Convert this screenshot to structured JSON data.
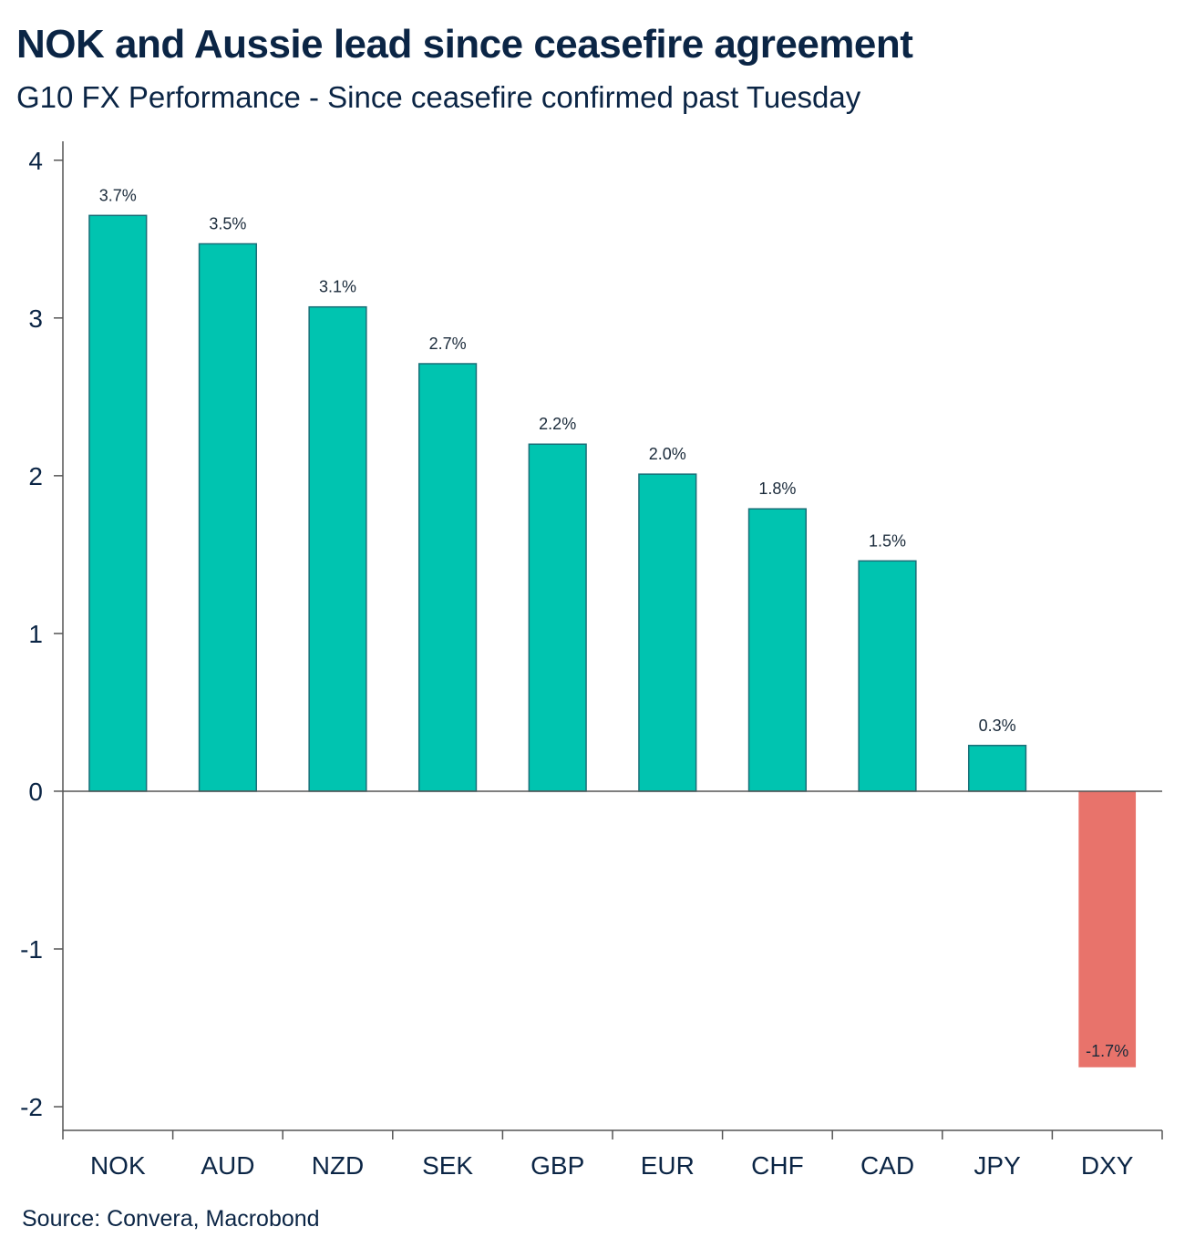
{
  "header": {
    "title": "NOK and Aussie lead since ceasefire agreement",
    "subtitle": "G10 FX Performance - Since ceasefire confirmed past Tuesday"
  },
  "footer": {
    "source": "Source: Convera, Macrobond"
  },
  "colors": {
    "positive": "#00c4b0",
    "positive_stroke": "#1a6f78",
    "negative": "#e8736b",
    "axis": "#555555",
    "text": "#0b2545"
  },
  "chart_data": {
    "type": "bar",
    "title": "NOK and Aussie lead since ceasefire agreement",
    "subtitle": "G10 FX Performance - Since ceasefire confirmed past Tuesday",
    "xlabel": "",
    "ylabel": "",
    "categories": [
      "NOK",
      "AUD",
      "NZD",
      "SEK",
      "GBP",
      "EUR",
      "CHF",
      "CAD",
      "JPY",
      "DXY"
    ],
    "values": [
      3.65,
      3.47,
      3.07,
      2.71,
      2.2,
      2.01,
      1.79,
      1.46,
      0.29,
      -1.75
    ],
    "data_labels": [
      "3.7%",
      "3.5%",
      "3.1%",
      "2.7%",
      "2.2%",
      "2.0%",
      "1.8%",
      "1.5%",
      "0.3%",
      "-1.7%"
    ],
    "ylim": [
      -2.15,
      4.12
    ],
    "yticks": [
      4,
      3,
      2,
      1,
      0,
      -1,
      -2
    ],
    "ytick_labels": [
      "4",
      "3",
      "2",
      "1",
      "0",
      "-1",
      "-2"
    ],
    "grid": false,
    "legend": "none"
  }
}
